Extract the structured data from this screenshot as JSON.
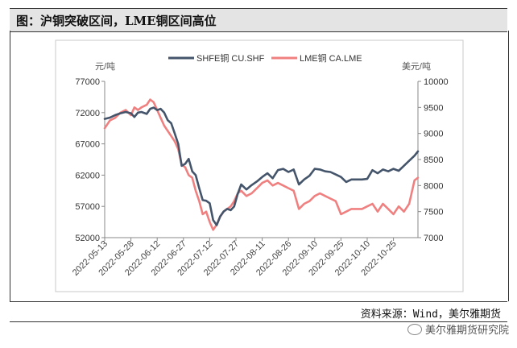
{
  "header": {
    "title": "图：沪铜突破区间，LME铜区间高位"
  },
  "footer": {
    "source": "资料来源：Wind，美尔雅期货",
    "watermark": "美尔雅期货研究院"
  },
  "chart_data": {
    "type": "line",
    "left_unit": "元/吨",
    "right_unit": "美元/吨",
    "left_axis": {
      "min": 52000,
      "max": 77000,
      "ticks": [
        "77000",
        "72000",
        "67000",
        "62000",
        "57000",
        "52000"
      ]
    },
    "right_axis": {
      "min": 7000,
      "max": 10000,
      "ticks": [
        "10000",
        "9500",
        "9000",
        "8500",
        "8000",
        "7500",
        "7000"
      ]
    },
    "x_labels": [
      "2022-05-13",
      "2022-05-28",
      "2022-06-12",
      "2022-06-27",
      "2022-07-12",
      "2022-07-27",
      "2022-08-11",
      "2022-08-26",
      "2022-09-10",
      "2022-09-25",
      "2022-10-10",
      "2022-10-25"
    ],
    "x_range": [
      "2022-05-13",
      "2022-11-08"
    ],
    "grid": false,
    "legend_position": "top",
    "series": [
      {
        "name": "SHFE铜 CU.SHF",
        "axis": "left",
        "color": "#44546a",
        "points": [
          [
            "2022-05-13",
            71000
          ],
          [
            "2022-05-16",
            71200
          ],
          [
            "2022-05-19",
            71600
          ],
          [
            "2022-05-22",
            71900
          ],
          [
            "2022-05-25",
            72100
          ],
          [
            "2022-05-28",
            71900
          ],
          [
            "2022-05-30",
            71300
          ],
          [
            "2022-06-01",
            72000
          ],
          [
            "2022-06-03",
            72100
          ],
          [
            "2022-06-06",
            71800
          ],
          [
            "2022-06-08",
            72600
          ],
          [
            "2022-06-10",
            72800
          ],
          [
            "2022-06-12",
            72400
          ],
          [
            "2022-06-14",
            72600
          ],
          [
            "2022-06-16",
            72000
          ],
          [
            "2022-06-18",
            70800
          ],
          [
            "2022-06-20",
            70300
          ],
          [
            "2022-06-22",
            68700
          ],
          [
            "2022-06-24",
            67000
          ],
          [
            "2022-06-26",
            63500
          ],
          [
            "2022-06-28",
            63800
          ],
          [
            "2022-06-30",
            64600
          ],
          [
            "2022-07-02",
            62600
          ],
          [
            "2022-07-04",
            62000
          ],
          [
            "2022-07-06",
            59900
          ],
          [
            "2022-07-08",
            58000
          ],
          [
            "2022-07-10",
            57900
          ],
          [
            "2022-07-12",
            57500
          ],
          [
            "2022-07-14",
            54800
          ],
          [
            "2022-07-16",
            54000
          ],
          [
            "2022-07-18",
            55400
          ],
          [
            "2022-07-20",
            56200
          ],
          [
            "2022-07-22",
            56600
          ],
          [
            "2022-07-24",
            56400
          ],
          [
            "2022-07-26",
            57000
          ],
          [
            "2022-07-28",
            59000
          ],
          [
            "2022-07-30",
            60500
          ],
          [
            "2022-08-02",
            59700
          ],
          [
            "2022-08-05",
            60400
          ],
          [
            "2022-08-08",
            61000
          ],
          [
            "2022-08-11",
            61700
          ],
          [
            "2022-08-14",
            62300
          ],
          [
            "2022-08-17",
            61500
          ],
          [
            "2022-08-20",
            62800
          ],
          [
            "2022-08-23",
            63000
          ],
          [
            "2022-08-26",
            62500
          ],
          [
            "2022-08-29",
            62900
          ],
          [
            "2022-09-01",
            60500
          ],
          [
            "2022-09-04",
            61300
          ],
          [
            "2022-09-07",
            61900
          ],
          [
            "2022-09-10",
            63000
          ],
          [
            "2022-09-13",
            62900
          ],
          [
            "2022-09-16",
            62600
          ],
          [
            "2022-09-19",
            62500
          ],
          [
            "2022-09-22",
            62100
          ],
          [
            "2022-09-25",
            61700
          ],
          [
            "2022-09-28",
            60900
          ],
          [
            "2022-10-01",
            61300
          ],
          [
            "2022-10-04",
            61300
          ],
          [
            "2022-10-07",
            61300
          ],
          [
            "2022-10-10",
            61400
          ],
          [
            "2022-10-13",
            62800
          ],
          [
            "2022-10-16",
            62300
          ],
          [
            "2022-10-19",
            62900
          ],
          [
            "2022-10-22",
            62600
          ],
          [
            "2022-10-25",
            63000
          ],
          [
            "2022-10-28",
            62700
          ],
          [
            "2022-10-31",
            63500
          ],
          [
            "2022-11-03",
            64300
          ],
          [
            "2022-11-06",
            65100
          ],
          [
            "2022-11-08",
            65800
          ]
        ]
      },
      {
        "name": "LME铜 CA.LME",
        "axis": "right",
        "color": "#f08080",
        "points": [
          [
            "2022-05-13",
            9100
          ],
          [
            "2022-05-16",
            9250
          ],
          [
            "2022-05-19",
            9300
          ],
          [
            "2022-05-22",
            9400
          ],
          [
            "2022-05-25",
            9450
          ],
          [
            "2022-05-28",
            9350
          ],
          [
            "2022-05-30",
            9500
          ],
          [
            "2022-06-01",
            9450
          ],
          [
            "2022-06-03",
            9500
          ],
          [
            "2022-06-06",
            9550
          ],
          [
            "2022-06-08",
            9650
          ],
          [
            "2022-06-10",
            9600
          ],
          [
            "2022-06-12",
            9450
          ],
          [
            "2022-06-14",
            9300
          ],
          [
            "2022-06-16",
            9150
          ],
          [
            "2022-06-18",
            9050
          ],
          [
            "2022-06-20",
            8950
          ],
          [
            "2022-06-22",
            8850
          ],
          [
            "2022-06-24",
            8700
          ],
          [
            "2022-06-26",
            8400
          ],
          [
            "2022-06-28",
            8350
          ],
          [
            "2022-06-30",
            8200
          ],
          [
            "2022-07-02",
            8150
          ],
          [
            "2022-07-04",
            7900
          ],
          [
            "2022-07-06",
            7700
          ],
          [
            "2022-07-08",
            7450
          ],
          [
            "2022-07-10",
            7500
          ],
          [
            "2022-07-12",
            7300
          ],
          [
            "2022-07-14",
            7150
          ],
          [
            "2022-07-16",
            7250
          ],
          [
            "2022-07-18",
            7400
          ],
          [
            "2022-07-20",
            7500
          ],
          [
            "2022-07-22",
            7550
          ],
          [
            "2022-07-24",
            7600
          ],
          [
            "2022-07-26",
            7700
          ],
          [
            "2022-07-28",
            7850
          ],
          [
            "2022-07-30",
            7900
          ],
          [
            "2022-08-02",
            7800
          ],
          [
            "2022-08-05",
            7850
          ],
          [
            "2022-08-08",
            7950
          ],
          [
            "2022-08-11",
            8050
          ],
          [
            "2022-08-14",
            8100
          ],
          [
            "2022-08-17",
            8000
          ],
          [
            "2022-08-20",
            8050
          ],
          [
            "2022-08-23",
            8000
          ],
          [
            "2022-08-26",
            7950
          ],
          [
            "2022-08-29",
            7900
          ],
          [
            "2022-09-01",
            7550
          ],
          [
            "2022-09-04",
            7650
          ],
          [
            "2022-09-07",
            7700
          ],
          [
            "2022-09-10",
            7800
          ],
          [
            "2022-09-13",
            7850
          ],
          [
            "2022-09-16",
            7800
          ],
          [
            "2022-09-19",
            7750
          ],
          [
            "2022-09-22",
            7700
          ],
          [
            "2022-09-25",
            7450
          ],
          [
            "2022-09-28",
            7500
          ],
          [
            "2022-10-01",
            7550
          ],
          [
            "2022-10-04",
            7550
          ],
          [
            "2022-10-07",
            7550
          ],
          [
            "2022-10-10",
            7600
          ],
          [
            "2022-10-13",
            7650
          ],
          [
            "2022-10-16",
            7500
          ],
          [
            "2022-10-19",
            7650
          ],
          [
            "2022-10-22",
            7550
          ],
          [
            "2022-10-25",
            7450
          ],
          [
            "2022-10-28",
            7600
          ],
          [
            "2022-10-31",
            7500
          ],
          [
            "2022-11-03",
            7650
          ],
          [
            "2022-11-06",
            8100
          ],
          [
            "2022-11-08",
            8150
          ]
        ]
      }
    ]
  }
}
